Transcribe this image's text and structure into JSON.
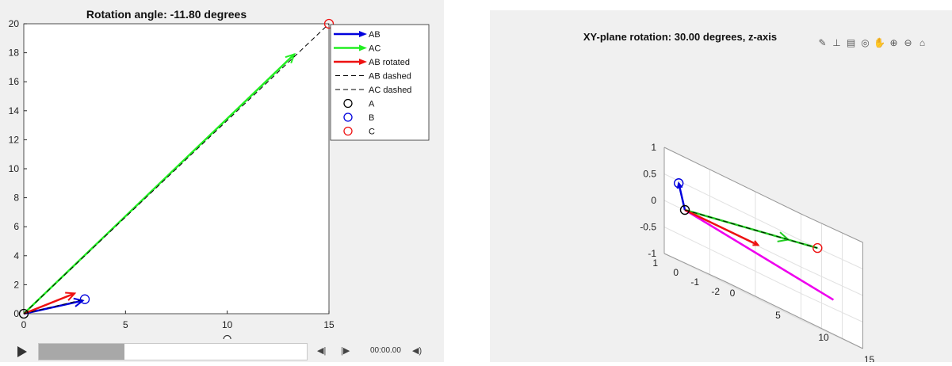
{
  "chart_data": [
    {
      "type": "line",
      "title": "Rotation angle: -11.80 degrees",
      "xlim": [
        0,
        15
      ],
      "ylim": [
        0,
        20
      ],
      "xticks": [
        0,
        5,
        10,
        15
      ],
      "yticks": [
        0,
        2,
        4,
        6,
        8,
        10,
        12,
        14,
        16,
        18,
        20
      ],
      "grid": false,
      "legend_position": "top-right",
      "series": [
        {
          "name": "AB",
          "kind": "arrow",
          "color": "#0000dd",
          "x": [
            0,
            2.9
          ],
          "y": [
            0,
            0.9
          ]
        },
        {
          "name": "AC",
          "kind": "arrow",
          "color": "#22ee22",
          "x": [
            0,
            13.3
          ],
          "y": [
            0,
            17.9
          ]
        },
        {
          "name": "AB rotated",
          "kind": "arrow",
          "color": "#ee1111",
          "x": [
            0,
            2.5
          ],
          "y": [
            0,
            1.4
          ]
        },
        {
          "name": "AB dashed",
          "kind": "dashed",
          "color": "#000000",
          "x": [
            0,
            3
          ],
          "y": [
            0,
            1
          ]
        },
        {
          "name": "AC dashed",
          "kind": "dashed",
          "color": "#000000",
          "x": [
            0,
            15
          ],
          "y": [
            0,
            20
          ]
        },
        {
          "name": "A",
          "kind": "marker",
          "color": "#000000",
          "x": [
            0
          ],
          "y": [
            0
          ]
        },
        {
          "name": "B",
          "kind": "marker",
          "color": "#0000dd",
          "x": [
            3
          ],
          "y": [
            1
          ]
        },
        {
          "name": "C",
          "kind": "marker",
          "color": "#ee1111",
          "x": [
            15
          ],
          "y": [
            20
          ]
        }
      ]
    },
    {
      "type": "line",
      "title": "XY-plane rotation: 30.00 degrees, z-axis",
      "projection": "3d",
      "xlim": [
        0,
        15
      ],
      "ylim": [
        -2,
        1
      ],
      "zlim": [
        -1,
        1
      ],
      "xticks": [
        0,
        5,
        10,
        15
      ],
      "yticks": [
        -2,
        -1,
        0,
        1
      ],
      "zticks": [
        -1,
        -0.5,
        0,
        0.5,
        1
      ],
      "grid": true,
      "series": [
        {
          "kind": "arrow",
          "color": "#22cc22",
          "x": [
            0,
            15
          ],
          "y": [
            0,
            0.2
          ],
          "z": [
            0,
            0.5
          ]
        },
        {
          "kind": "dashed",
          "color": "#000000",
          "x": [
            0,
            15
          ],
          "y": [
            0,
            0.2
          ],
          "z": [
            0,
            0.5
          ]
        },
        {
          "kind": "arrow",
          "color": "#0000dd",
          "x": [
            0,
            0
          ],
          "y": [
            0,
            0.3
          ],
          "z": [
            0,
            0.45
          ]
        },
        {
          "kind": "arrow",
          "color": "#ee1111",
          "x": [
            0,
            6
          ],
          "y": [
            0,
            -0.9
          ],
          "z": [
            0,
            0
          ]
        },
        {
          "kind": "line",
          "color": "#ee00ee",
          "x": [
            0,
            12
          ],
          "y": [
            0,
            -1.9
          ],
          "z": [
            0,
            -0.35
          ]
        },
        {
          "kind": "marker",
          "color": "#000000",
          "x": [
            0
          ],
          "y": [
            0
          ],
          "z": [
            0
          ]
        },
        {
          "kind": "marker",
          "color": "#0000dd",
          "x": [
            0
          ],
          "y": [
            0.3
          ],
          "z": [
            0.45
          ]
        },
        {
          "kind": "marker",
          "color": "#ee1111",
          "x": [
            15
          ],
          "y": [
            0.2
          ],
          "z": [
            0.5
          ]
        }
      ]
    }
  ],
  "player": {
    "time": "00:00.00",
    "progress": 0.32
  },
  "toolbar": {
    "icons": [
      "brush-icon",
      "data-tips-icon",
      "legend-icon",
      "rotate-3d-icon",
      "pan-icon",
      "zoom-in-icon",
      "zoom-out-icon",
      "home-icon"
    ],
    "glyphs": [
      "✎",
      "⊥",
      "▤",
      "◎",
      "✋",
      "⊕",
      "⊖",
      "⌂"
    ]
  }
}
